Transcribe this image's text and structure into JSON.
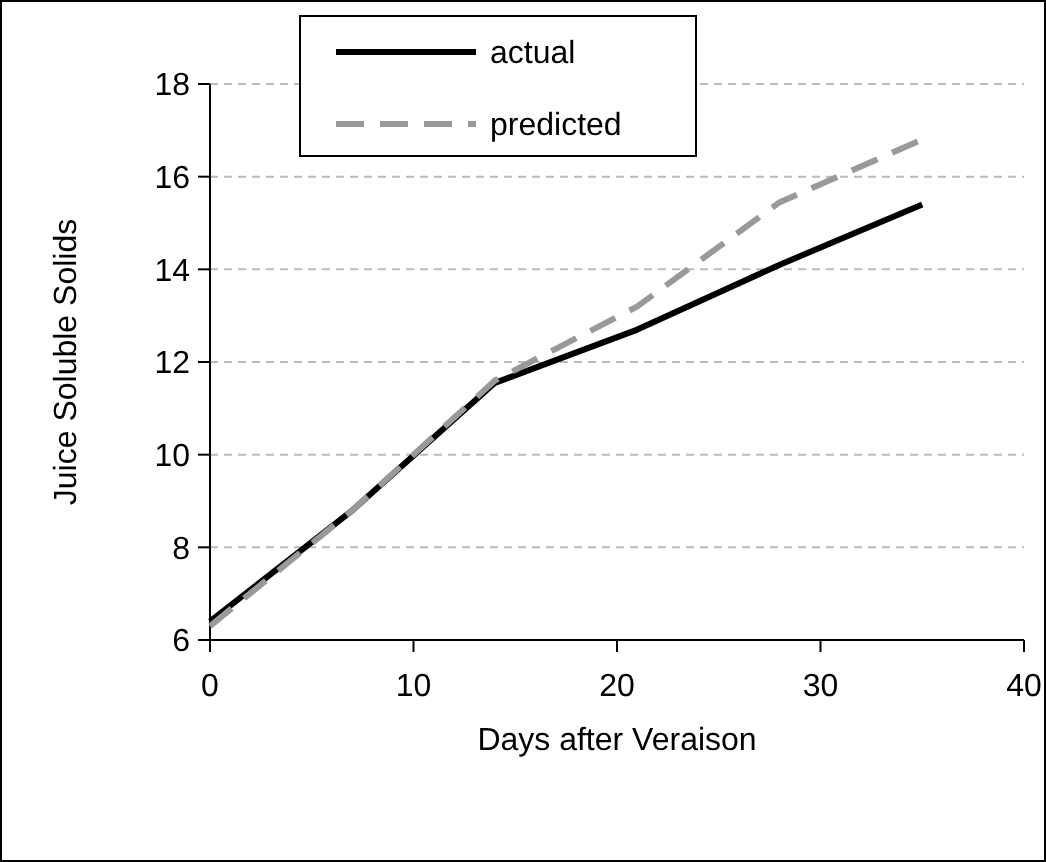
{
  "chart_data": {
    "type": "line",
    "xlabel": "Days after Veraison",
    "ylabel": "Juice Soluble Solids",
    "x": [
      0,
      7,
      14,
      21,
      28,
      35
    ],
    "series": [
      {
        "name": "actual",
        "color": "#000000",
        "line_style": "solid",
        "values": [
          6.4,
          8.8,
          11.55,
          12.7,
          14.1,
          15.4
        ]
      },
      {
        "name": "predicted",
        "color": "#999999",
        "line_style": "dashed",
        "values": [
          6.3,
          8.8,
          11.6,
          13.2,
          15.45,
          16.8
        ]
      }
    ],
    "xlim": [
      0,
      40
    ],
    "xticks": [
      0,
      10,
      20,
      30,
      40
    ],
    "ylim": [
      6,
      18
    ],
    "yticks": [
      6,
      8,
      10,
      12,
      14,
      16,
      18
    ],
    "grid": "y",
    "legend": "top left",
    "marker": "none"
  }
}
